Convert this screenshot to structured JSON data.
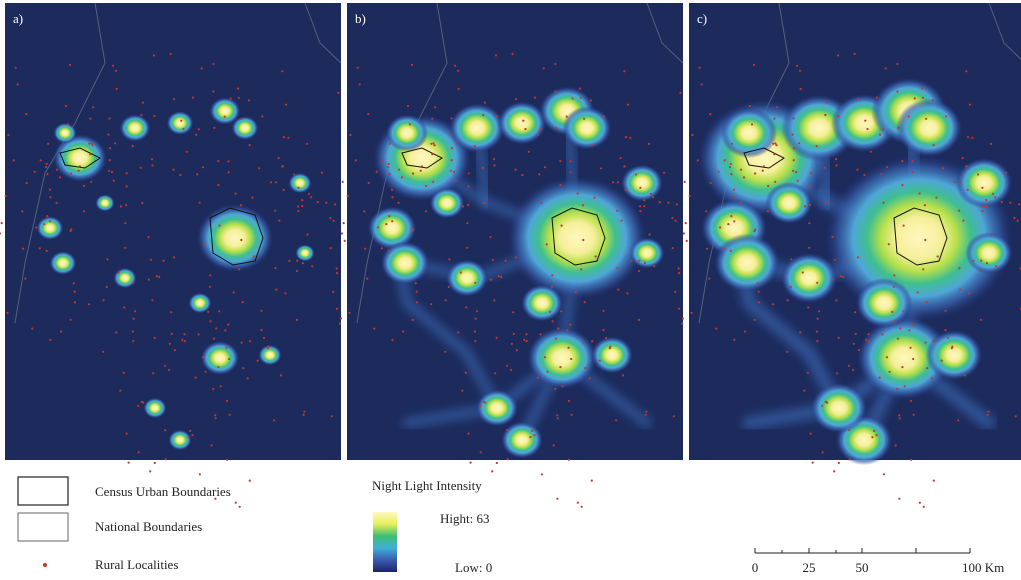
{
  "panels": [
    {
      "label": "a)"
    },
    {
      "label": "b)"
    },
    {
      "label": "c)"
    }
  ],
  "legend": {
    "items": [
      "Census Urban Boundaries",
      "National Boundaries",
      "Rural Localities"
    ]
  },
  "intensity_legend": {
    "title": "Night Light Intensity",
    "high": "Hight: 63",
    "low": "Low: 0"
  },
  "scale_bar": {
    "labels": [
      "0",
      "25",
      "50",
      "100 Km"
    ]
  }
}
